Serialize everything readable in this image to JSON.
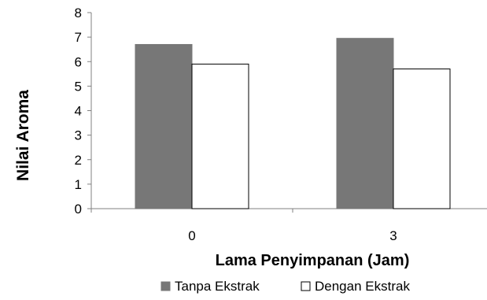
{
  "chart_data": {
    "type": "bar",
    "categories": [
      "0",
      "3"
    ],
    "series": [
      {
        "name": "Tanpa Ekstrak",
        "values": [
          6.7,
          6.95
        ],
        "color": "#777777"
      },
      {
        "name": "Dengan Ekstrak",
        "values": [
          5.9,
          5.7
        ],
        "color": "#ffffff"
      }
    ],
    "title": "",
    "xlabel": "Lama Penyimpanan (Jam)",
    "ylabel": "Nilai Aroma",
    "ylim": [
      0,
      8
    ],
    "yticks": [
      0,
      1,
      2,
      3,
      4,
      5,
      6,
      7,
      8
    ],
    "grid": false,
    "legend_position": "bottom"
  }
}
